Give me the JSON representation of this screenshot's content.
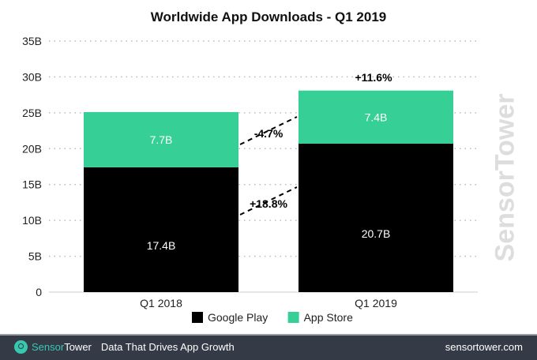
{
  "chart_data": {
    "type": "bar",
    "stacked": true,
    "title": "Worldwide App Downloads - Q1 2019",
    "categories": [
      "Q1 2018",
      "Q1 2019"
    ],
    "series": [
      {
        "name": "Google Play",
        "values": [
          17.4,
          20.7
        ],
        "labels": [
          "17.4B",
          "20.7B"
        ],
        "color": "#000000"
      },
      {
        "name": "App Store",
        "values": [
          7.7,
          7.4
        ],
        "labels": [
          "7.7B",
          "7.4B"
        ],
        "color": "#36d097"
      }
    ],
    "ylim": [
      0,
      35
    ],
    "yticks": [
      0,
      5,
      10,
      15,
      20,
      25,
      30,
      35
    ],
    "ytick_labels": [
      "0",
      "5B",
      "10B",
      "15B",
      "20B",
      "25B",
      "30B",
      "35B"
    ],
    "grid": true,
    "legend": "bottom",
    "annotations": {
      "google_play_growth": "+18.8%",
      "app_store_growth": "-4.7%",
      "total_growth": "+11.6%"
    }
  },
  "watermark": "SensorTower",
  "footer": {
    "brand_a": "Sensor",
    "brand_b": "Tower",
    "tagline": "Data That Drives App Growth",
    "url": "sensortower.com"
  }
}
